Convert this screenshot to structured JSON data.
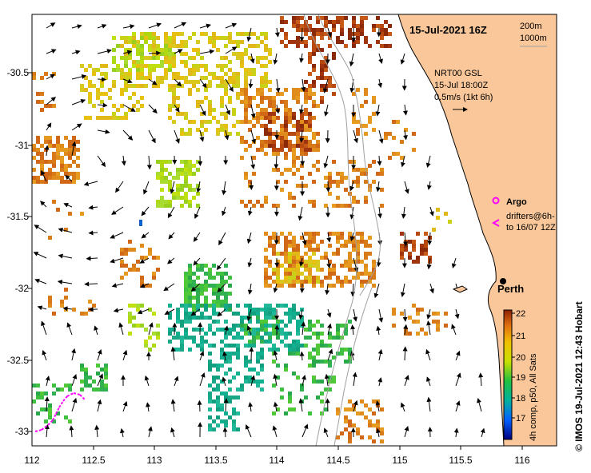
{
  "title": "15-Jul-2021 16Z",
  "depth_legend": [
    "200m",
    "1000m"
  ],
  "current_info": [
    "NRT00 GSL",
    "15-Jul 18:00Z",
    "0.5m/s (1kt 6h)"
  ],
  "argo_label": "Argo",
  "drifter_label": [
    "drifters@6h-",
    "to 16/07 12Z"
  ],
  "city": "Perth",
  "colorbar": {
    "label": "4h comp, p50, All Sats",
    "ticks": [
      "17",
      "18",
      "19",
      "20",
      "21",
      "22"
    ]
  },
  "credit": "© IMOS 19-Jul-2021 12:43 Hobart",
  "axes": {
    "x_ticks": [
      "112",
      "112.5",
      "113",
      "113.5",
      "114",
      "114.5",
      "115",
      "115.5",
      "116"
    ],
    "y_ticks": [
      "-30.5",
      "-31",
      "-31.5",
      "-32",
      "-32.5",
      "-33"
    ]
  },
  "colors": {
    "land": "#f9c79a",
    "argo": "#ff00ff",
    "drifter": "#ff00ff",
    "contour": "#a0a0a0"
  }
}
